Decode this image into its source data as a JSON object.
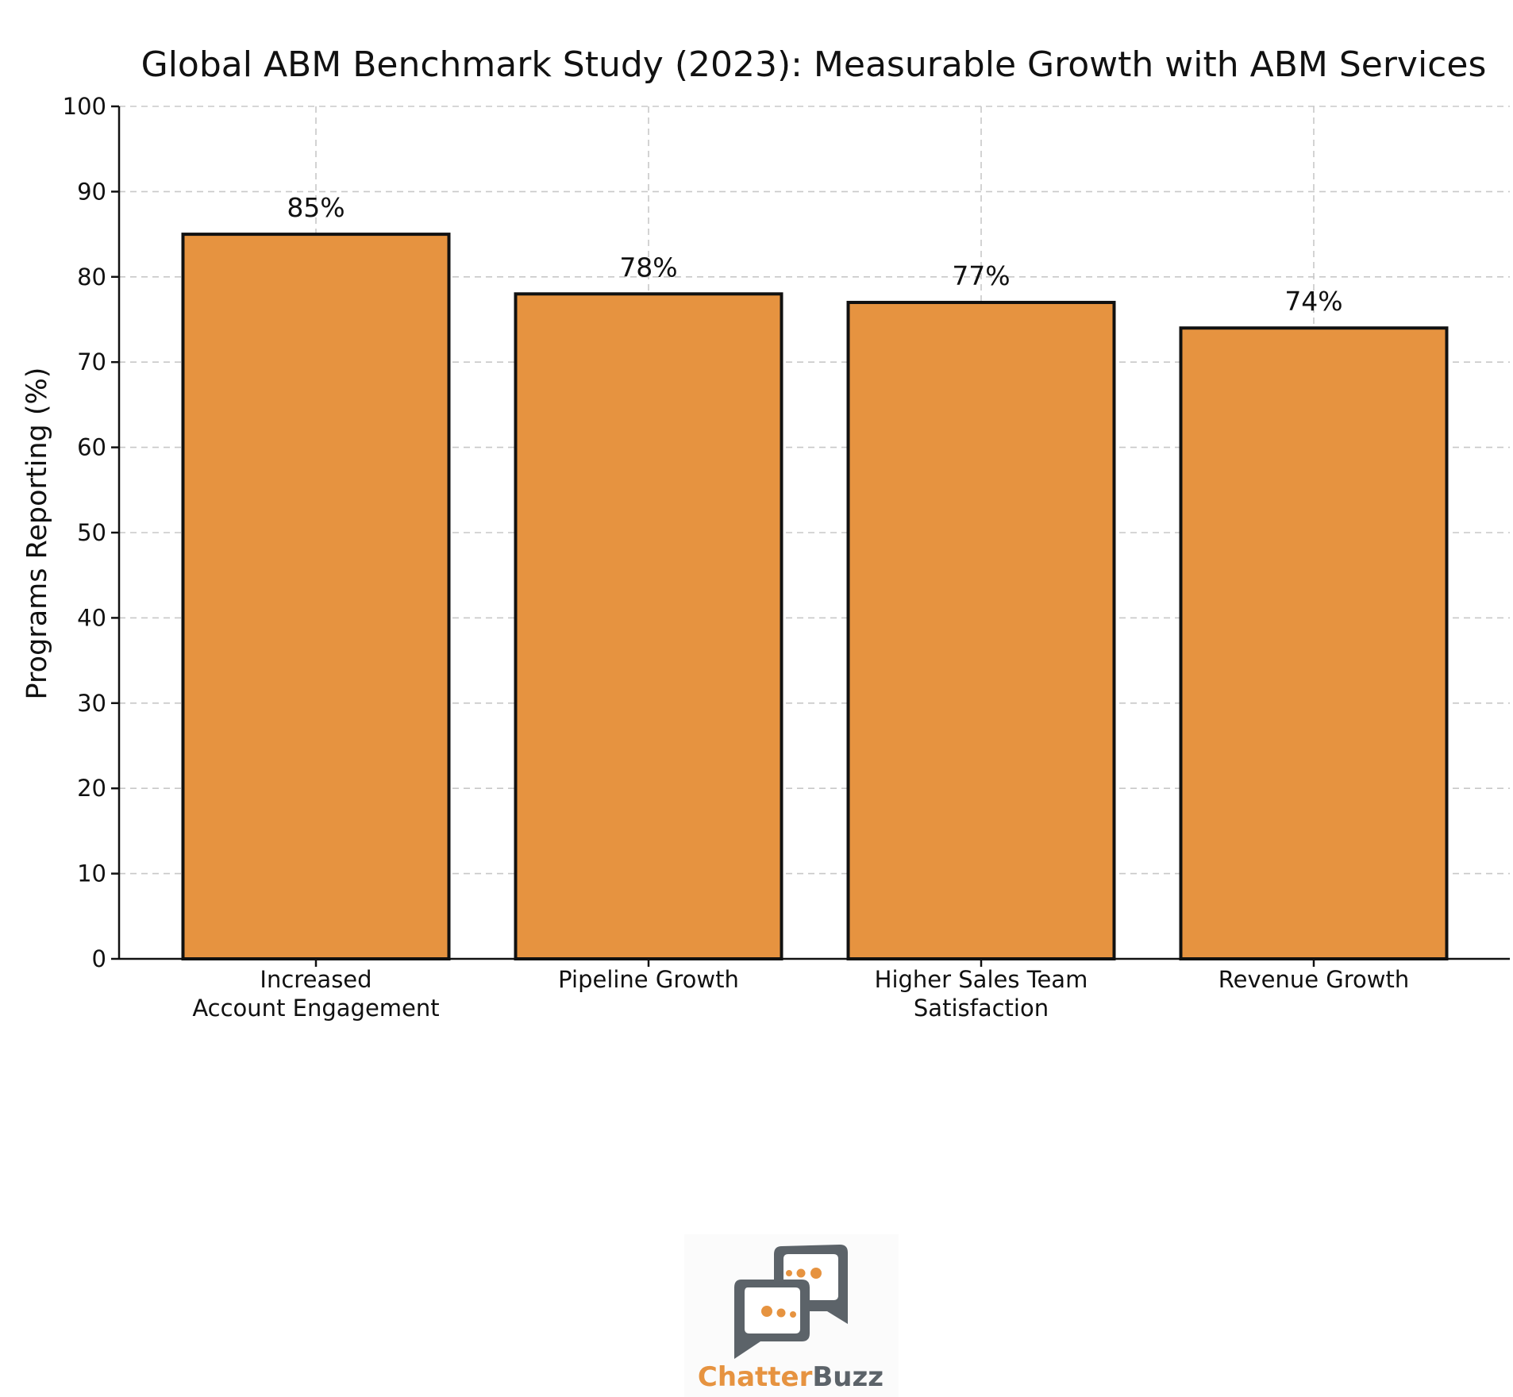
{
  "chart_data": {
    "type": "bar",
    "title": "Global ABM Benchmark Study (2023): Measurable Growth with ABM Services",
    "xlabel": "",
    "ylabel": "Programs Reporting (%)",
    "ylim": [
      0,
      100
    ],
    "yticks": [
      "0",
      "10",
      "20",
      "30",
      "40",
      "50",
      "60",
      "70",
      "80",
      "90",
      "100"
    ],
    "grid": true,
    "categories": [
      [
        "Increased",
        "Account Engagement"
      ],
      [
        "Pipeline Growth"
      ],
      [
        "Higher Sales Team",
        "Satisfaction"
      ],
      [
        "Revenue Growth"
      ]
    ],
    "values": [
      85,
      78,
      77,
      74
    ],
    "data_labels": [
      "85%",
      "78%",
      "77%",
      "74%"
    ],
    "bar_color": "#E69340",
    "edge_color": "#111111"
  },
  "logo": {
    "name": "chatterbuzz-logo",
    "word_part_1": "Chatter",
    "word_part_2": "Buzz",
    "color_orange": "#E69340",
    "color_gray": "#5C6369"
  }
}
